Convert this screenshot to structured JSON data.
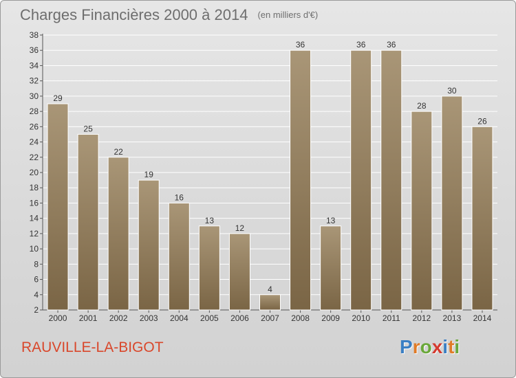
{
  "header": {
    "title": "Charges Financières 2000 à 2014",
    "unit": "(en milliers d'€)"
  },
  "footer": {
    "commune": "RAUVILLE-LA-BIGOT",
    "logo_letters": [
      "P",
      "r",
      "o",
      "x",
      "i",
      "t",
      "i"
    ],
    "logo_colors": [
      "#3a7fc4",
      "#e07b27",
      "#6aa83a",
      "#d43a2f",
      "#3a7fc4",
      "#e07b27",
      "#6aa83a"
    ],
    "commune_color": "#d9472b"
  },
  "chart_data": {
    "type": "bar",
    "categories": [
      "2000",
      "2001",
      "2002",
      "2003",
      "2004",
      "2005",
      "2006",
      "2007",
      "2008",
      "2009",
      "2010",
      "2011",
      "2012",
      "2013",
      "2014"
    ],
    "values": [
      29,
      25,
      22,
      19,
      16,
      13,
      12,
      4,
      36,
      13,
      36,
      36,
      28,
      30,
      26
    ],
    "ylim": [
      2,
      38
    ],
    "yticks": [
      2,
      4,
      6,
      8,
      10,
      12,
      14,
      16,
      18,
      20,
      22,
      24,
      26,
      28,
      30,
      32,
      34,
      36,
      38
    ],
    "grid": true,
    "bar_color_top": "#a99677",
    "bar_color_bottom": "#7a6545",
    "xlabel": "",
    "ylabel": ""
  }
}
